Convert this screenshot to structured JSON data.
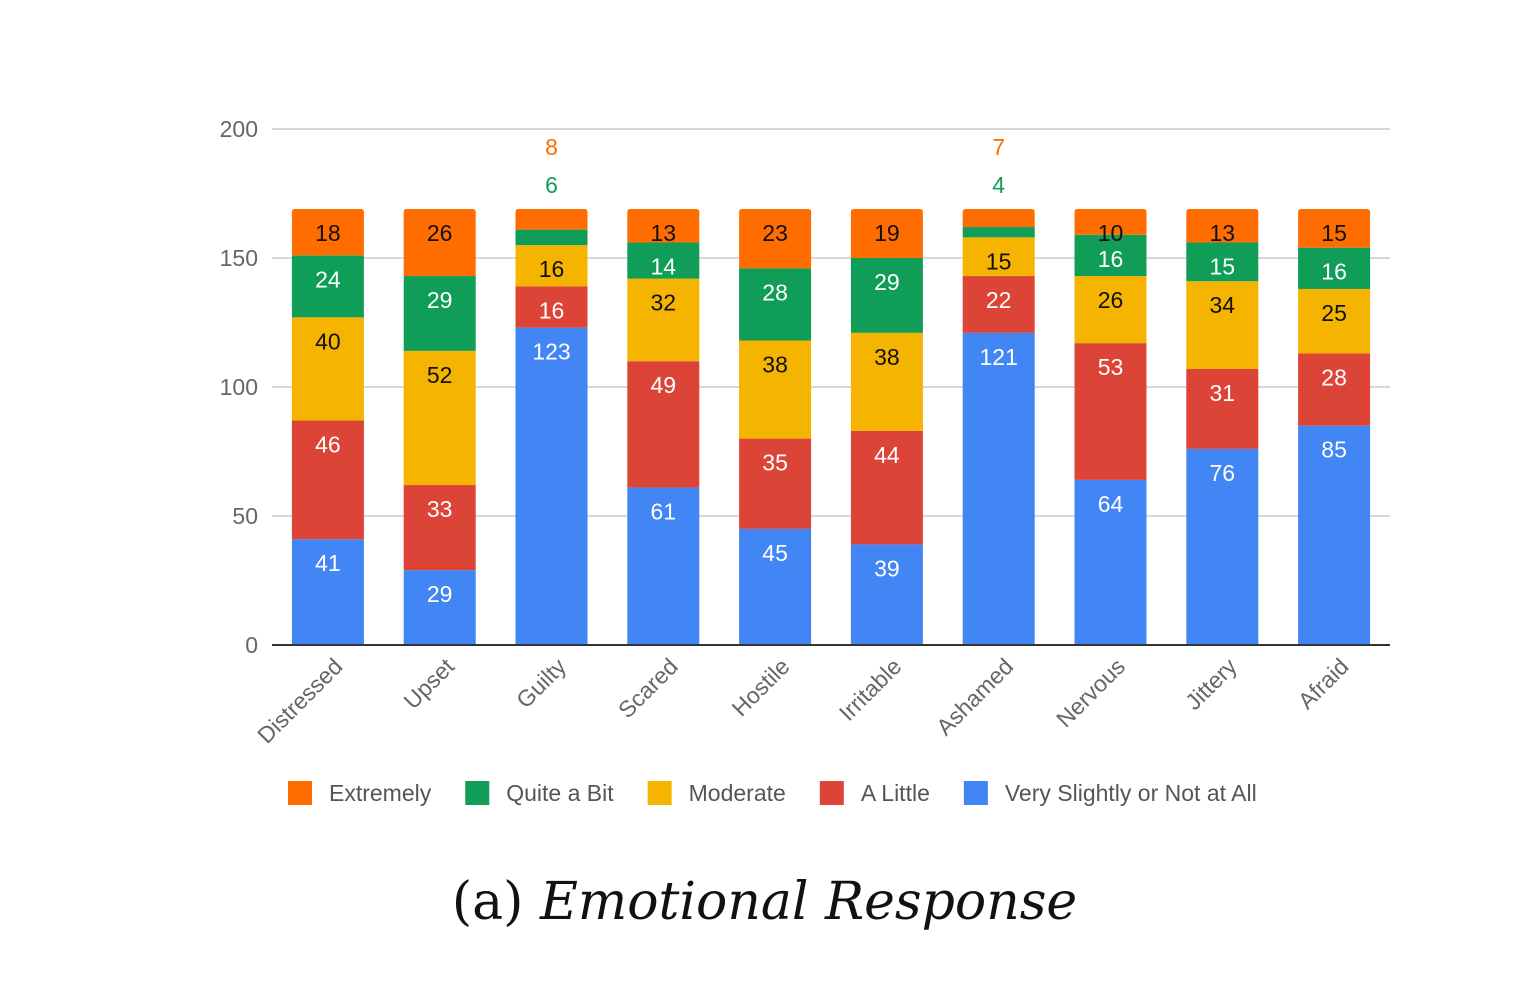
{
  "caption": {
    "prefix": "(a)",
    "title": "Emotional Response"
  },
  "colors": {
    "Extremely": "#ff6d01",
    "Quite a Bit": "#0f9d58",
    "Moderate": "#f4b400",
    "A Little": "#db4437",
    "Very Slightly or Not at All": "#4285f4",
    "grid": "#cccccc",
    "axis": "#333333"
  },
  "chart_data": {
    "type": "bar",
    "stacked": true,
    "title": "",
    "xlabel": "",
    "ylabel": "",
    "ylim": [
      0,
      200
    ],
    "yticks": [
      0,
      50,
      100,
      150,
      200
    ],
    "grid": true,
    "legend_position": "bottom",
    "categories": [
      "Distressed",
      "Upset",
      "Guilty",
      "Scared",
      "Hostile",
      "Irritable",
      "Ashamed",
      "Nervous",
      "Jittery",
      "Afraid"
    ],
    "series": [
      {
        "name": "Very Slightly or Not at All",
        "values": [
          41,
          29,
          123,
          61,
          45,
          39,
          121,
          64,
          76,
          85
        ]
      },
      {
        "name": "A Little",
        "values": [
          46,
          33,
          16,
          49,
          35,
          44,
          22,
          53,
          31,
          28
        ]
      },
      {
        "name": "Moderate",
        "values": [
          40,
          52,
          16,
          32,
          38,
          38,
          15,
          26,
          34,
          25
        ]
      },
      {
        "name": "Quite a Bit",
        "values": [
          24,
          29,
          6,
          14,
          28,
          29,
          4,
          16,
          15,
          16
        ]
      },
      {
        "name": "Extremely",
        "values": [
          18,
          26,
          8,
          13,
          23,
          19,
          7,
          10,
          13,
          15
        ]
      }
    ],
    "legend_order": [
      "Extremely",
      "Quite a Bit",
      "Moderate",
      "A Little",
      "Very Slightly or Not at All"
    ]
  }
}
